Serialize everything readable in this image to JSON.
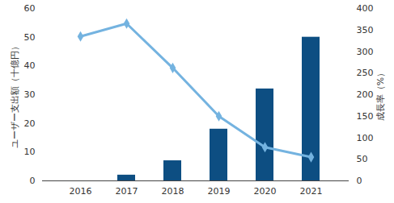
{
  "chart_data": {
    "type": "bar",
    "categories": [
      "2016",
      "2017",
      "2018",
      "2019",
      "2020",
      "2021"
    ],
    "ylabel": "ユーザー支出額（十億円）",
    "y2label": "成長率（%）",
    "ylim": [
      0,
      60
    ],
    "yticks": [
      0,
      10,
      20,
      30,
      40,
      50,
      60
    ],
    "y2lim": [
      0,
      400
    ],
    "y2ticks": [
      0,
      50,
      100,
      150,
      200,
      250,
      300,
      350,
      400
    ],
    "grid": false,
    "series": [
      {
        "name": "ユーザー支出額",
        "type": "bar",
        "color": "#0d4e82",
        "values": [
          0,
          2,
          7,
          18,
          32,
          50
        ]
      },
      {
        "name": "成長率",
        "type": "line",
        "axis": "y2",
        "color": "#74b3e0",
        "marker": "diamond",
        "values": [
          335,
          365,
          262,
          150,
          78,
          55
        ]
      }
    ]
  }
}
